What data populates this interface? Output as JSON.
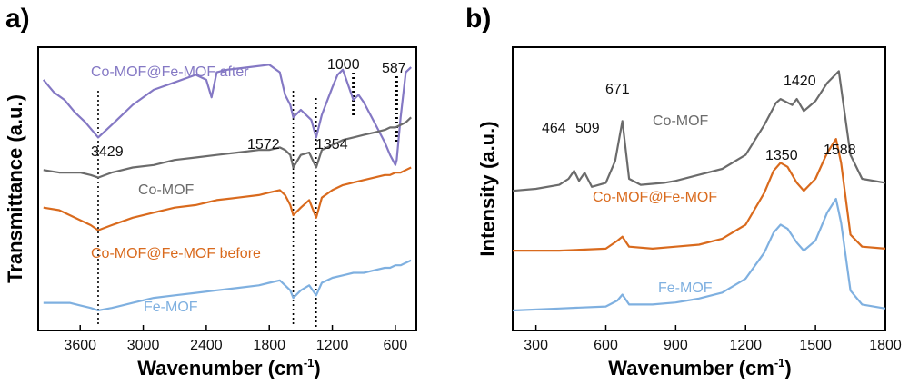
{
  "colors": {
    "purple": "#8478c4",
    "gray": "#6b6b6b",
    "orange": "#d96a1d",
    "blue": "#7fb0e0"
  },
  "chart_data": [
    {
      "panel": "a)",
      "type": "line",
      "xlabel": "Wavenumber (cm",
      "xlabel_sup": "-1",
      "xlabel_tail": ")",
      "ylabel": "Transmittance (a.u.)",
      "xlim": [
        4000,
        400
      ],
      "x_reversed": true,
      "xticks": [
        3600,
        3000,
        2400,
        1800,
        1200,
        600
      ],
      "y_ticks_shown": false,
      "series": [
        {
          "name": "Co-MOF@Fe-MOF after",
          "color": "#8478c4",
          "x": [
            3950,
            3850,
            3750,
            3650,
            3550,
            3429,
            3300,
            3100,
            2900,
            2700,
            2500,
            2400,
            2350,
            2300,
            2200,
            2000,
            1800,
            1700,
            1650,
            1600,
            1572,
            1500,
            1400,
            1354,
            1300,
            1200,
            1150,
            1100,
            1050,
            1000,
            950,
            900,
            800,
            700,
            650,
            600,
            587,
            550,
            500,
            450
          ],
          "y": [
            10.0,
            9.5,
            9.2,
            8.7,
            8.3,
            7.7,
            8.2,
            9.0,
            9.6,
            9.9,
            10.2,
            10.0,
            9.3,
            10.3,
            10.4,
            10.5,
            10.6,
            10.3,
            9.4,
            9.0,
            8.5,
            8.8,
            8.4,
            7.7,
            8.6,
            9.7,
            10.2,
            10.4,
            9.8,
            9.2,
            9.4,
            9.1,
            8.3,
            7.5,
            7.0,
            6.6,
            6.8,
            8.5,
            10.3,
            10.5
          ]
        },
        {
          "name": "Co-MOF",
          "color": "#6b6b6b",
          "x": [
            3950,
            3800,
            3700,
            3600,
            3500,
            3429,
            3300,
            3100,
            2900,
            2700,
            2500,
            2300,
            2100,
            1900,
            1800,
            1700,
            1650,
            1600,
            1572,
            1500,
            1420,
            1354,
            1300,
            1200,
            1100,
            1000,
            900,
            800,
            700,
            650,
            600,
            550,
            500,
            450
          ],
          "y": [
            6.4,
            6.3,
            6.3,
            6.3,
            6.2,
            6.1,
            6.3,
            6.5,
            6.6,
            6.8,
            6.9,
            7.0,
            7.1,
            7.2,
            7.2,
            7.3,
            7.2,
            7.0,
            6.5,
            7.0,
            7.1,
            6.5,
            7.2,
            7.4,
            7.6,
            7.7,
            7.8,
            7.9,
            8.0,
            8.1,
            8.1,
            8.2,
            8.3,
            8.5
          ]
        },
        {
          "name": "Co-MOF@Fe-MOF before",
          "color": "#d96a1d",
          "x": [
            3950,
            3800,
            3700,
            3600,
            3500,
            3429,
            3300,
            3100,
            2900,
            2700,
            2500,
            2300,
            2100,
            1900,
            1800,
            1700,
            1650,
            1600,
            1572,
            1500,
            1420,
            1354,
            1300,
            1200,
            1100,
            1000,
            900,
            800,
            700,
            650,
            600,
            550,
            500,
            450
          ],
          "y": [
            4.9,
            4.8,
            4.6,
            4.4,
            4.2,
            4.0,
            4.2,
            4.5,
            4.7,
            4.9,
            5.0,
            5.2,
            5.3,
            5.4,
            5.5,
            5.6,
            5.4,
            5.0,
            4.6,
            4.9,
            5.2,
            4.5,
            5.3,
            5.6,
            5.8,
            5.9,
            6.0,
            6.1,
            6.2,
            6.2,
            6.3,
            6.3,
            6.4,
            6.5
          ]
        },
        {
          "name": "Fe-MOF",
          "color": "#7fb0e0",
          "x": [
            3950,
            3800,
            3700,
            3600,
            3500,
            3429,
            3300,
            3100,
            2900,
            2700,
            2500,
            2300,
            2100,
            1900,
            1800,
            1700,
            1650,
            1600,
            1572,
            1500,
            1420,
            1354,
            1300,
            1200,
            1100,
            1000,
            900,
            800,
            700,
            650,
            600,
            550,
            500,
            450
          ],
          "y": [
            1.1,
            1.1,
            1.1,
            1.0,
            0.9,
            0.8,
            0.9,
            1.1,
            1.3,
            1.4,
            1.5,
            1.6,
            1.7,
            1.8,
            1.9,
            2.0,
            1.8,
            1.6,
            1.3,
            1.6,
            1.8,
            1.4,
            1.9,
            2.1,
            2.2,
            2.3,
            2.3,
            2.4,
            2.5,
            2.5,
            2.6,
            2.6,
            2.7,
            2.8
          ]
        }
      ],
      "series_labels": [
        "Co-MOF@Fe-MOF after",
        "Co-MOF",
        "Co-MOF@Fe-MOF before",
        "Fe-MOF"
      ],
      "annotations": [
        "3429",
        "1572",
        "1354",
        "1000",
        "587"
      ],
      "guide_lines_at": [
        3429,
        1572,
        1354,
        1000,
        587
      ]
    },
    {
      "panel": "b)",
      "type": "line",
      "xlabel": "Wavenumber (cm",
      "xlabel_sup": "-1",
      "xlabel_tail": ")",
      "ylabel": "Intensity (a.u.)",
      "xlim": [
        200,
        1800
      ],
      "xticks": [
        300,
        600,
        900,
        1200,
        1500,
        1800
      ],
      "y_ticks_shown": false,
      "series": [
        {
          "name": "Co-MOF",
          "color": "#6b6b6b",
          "x": [
            200,
            300,
            400,
            440,
            464,
            485,
            509,
            540,
            600,
            640,
            671,
            700,
            750,
            850,
            900,
            1000,
            1100,
            1200,
            1280,
            1330,
            1350,
            1400,
            1420,
            1450,
            1500,
            1550,
            1600,
            1650,
            1700,
            1800
          ],
          "y": [
            7.0,
            7.1,
            7.3,
            7.6,
            8.0,
            7.5,
            7.9,
            7.2,
            7.4,
            8.5,
            10.5,
            7.6,
            7.3,
            7.4,
            7.5,
            7.8,
            8.1,
            8.8,
            10.3,
            11.4,
            11.6,
            11.3,
            11.6,
            11.0,
            11.5,
            12.4,
            13.0,
            8.8,
            7.6,
            7.4
          ]
        },
        {
          "name": "Co-MOF@Fe-MOF",
          "color": "#d96a1d",
          "x": [
            200,
            400,
            600,
            650,
            671,
            700,
            800,
            900,
            1000,
            1100,
            1200,
            1280,
            1320,
            1350,
            1380,
            1420,
            1450,
            1500,
            1550,
            1588,
            1610,
            1650,
            1700,
            1800
          ],
          "y": [
            4.0,
            4.0,
            4.1,
            4.5,
            4.7,
            4.2,
            4.1,
            4.2,
            4.3,
            4.6,
            5.3,
            6.9,
            8.0,
            8.4,
            8.2,
            7.4,
            7.0,
            7.6,
            8.9,
            9.6,
            8.4,
            4.8,
            4.2,
            4.1
          ]
        },
        {
          "name": "Fe-MOF",
          "color": "#7fb0e0",
          "x": [
            200,
            400,
            600,
            650,
            671,
            700,
            800,
            900,
            1000,
            1100,
            1200,
            1280,
            1320,
            1350,
            1380,
            1420,
            1450,
            1500,
            1550,
            1588,
            1610,
            1650,
            1700,
            1800
          ],
          "y": [
            1.0,
            1.1,
            1.2,
            1.5,
            1.8,
            1.3,
            1.3,
            1.4,
            1.6,
            1.9,
            2.6,
            3.9,
            4.9,
            5.3,
            5.1,
            4.4,
            4.0,
            4.5,
            5.9,
            6.6,
            5.4,
            2.0,
            1.3,
            1.1
          ]
        }
      ],
      "series_labels": [
        "Co-MOF",
        "Co-MOF@Fe-MOF",
        "Fe-MOF"
      ],
      "annotations": [
        "464",
        "509",
        "671",
        "1420",
        "1350",
        "1588"
      ]
    }
  ]
}
